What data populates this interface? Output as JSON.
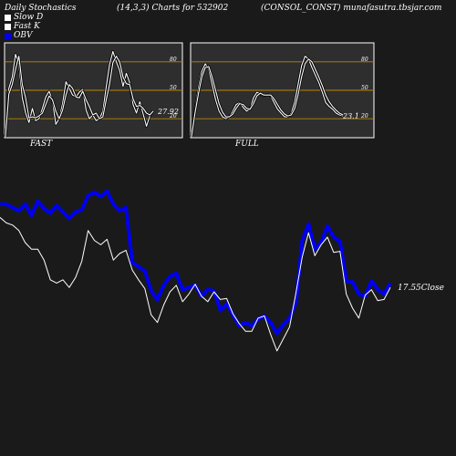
{
  "header": {
    "title": "Daily Stochastics",
    "params": "(14,3,3) Charts for 532902",
    "company": "(CONSOL_CONST) munafasutra.tbsjar.com"
  },
  "legend": [
    {
      "label": "Slow  D",
      "color": "#ffffff"
    },
    {
      "label": "Fast K",
      "color": "#ffffff"
    },
    {
      "label": "OBV",
      "color": "#0000ee"
    }
  ],
  "colors": {
    "background": "#1a1a1a",
    "panel": "#2e2e2e",
    "level_line": "#b8860b",
    "obv": "#0000ee",
    "price": "#ffffff"
  },
  "chart_data": [
    {
      "type": "line",
      "name": "stoch-fast-panel",
      "label": "FAST",
      "ylim": [
        0,
        100
      ],
      "levels": [
        20,
        50,
        80
      ],
      "level_labels": [
        "20",
        "50",
        "80"
      ],
      "last_value_label": "27.92",
      "series": [
        {
          "name": "Fast K",
          "values": [
            1,
            52,
            64,
            88,
            78,
            42,
            26,
            16,
            31,
            18,
            20,
            31,
            43,
            49,
            39,
            14,
            20,
            36,
            59,
            52,
            45,
            43,
            48,
            51,
            29,
            20,
            24,
            18,
            20,
            28,
            54,
            77,
            91,
            80,
            71,
            54,
            68,
            58,
            35,
            26,
            38,
            25,
            12,
            23,
            28
          ]
        },
        {
          "name": "Slow D",
          "values": [
            1,
            46,
            56,
            72,
            86,
            56,
            42,
            21,
            22,
            21,
            23,
            26,
            35,
            44,
            40,
            28,
            20,
            29,
            45,
            56,
            52,
            43,
            42,
            49,
            40,
            33,
            24,
            26,
            20,
            22,
            40,
            56,
            79,
            86,
            80,
            64,
            57,
            56,
            41,
            33,
            34,
            31,
            26,
            24,
            28
          ]
        }
      ]
    },
    {
      "type": "line",
      "name": "stoch-full-panel",
      "label": "FULL",
      "ylim": [
        0,
        100
      ],
      "levels": [
        20,
        50,
        80
      ],
      "level_labels": [
        "20",
        "50",
        "80"
      ],
      "last_value_label": "23.1",
      "series": [
        {
          "name": "K",
          "values": [
            1,
            30,
            52,
            70,
            78,
            72,
            56,
            40,
            28,
            22,
            20,
            22,
            28,
            35,
            37,
            32,
            28,
            30,
            42,
            48,
            46,
            44,
            46,
            44,
            37,
            30,
            26,
            22,
            22,
            26,
            38,
            57,
            76,
            86,
            83,
            74,
            66,
            58,
            48,
            37,
            33,
            30,
            26,
            24,
            23
          ]
        },
        {
          "name": "D",
          "values": [
            1,
            26,
            46,
            64,
            74,
            75,
            64,
            50,
            36,
            27,
            22,
            22,
            25,
            31,
            36,
            35,
            31,
            30,
            36,
            44,
            47,
            45,
            45,
            45,
            41,
            35,
            29,
            25,
            23,
            24,
            31,
            46,
            64,
            78,
            83,
            80,
            72,
            64,
            55,
            45,
            38,
            33,
            29,
            26,
            24
          ]
        }
      ]
    },
    {
      "type": "line",
      "name": "obv-price-panel",
      "close_label": "17.55Close",
      "series": [
        {
          "name": "OBV",
          "values": [
            80,
            80,
            77,
            74,
            80,
            70,
            83,
            76,
            72,
            79,
            73,
            67,
            73,
            75,
            88,
            91,
            87,
            92,
            80,
            74,
            77,
            27,
            23,
            19,
            1,
            -7,
            6,
            14,
            17,
            2,
            4,
            6,
            -4,
            2,
            1,
            -17,
            -11,
            -21,
            -31,
            -28,
            -31,
            -25,
            -22,
            -28,
            -38,
            -30,
            -24,
            -10,
            47,
            62,
            39,
            45,
            60,
            50,
            46,
            10,
            9,
            -2,
            -4,
            10,
            2,
            -2,
            8
          ]
        },
        {
          "name": "Price",
          "values": [
            68,
            63,
            61,
            56,
            45,
            39,
            39,
            29,
            11,
            8,
            11,
            4,
            13,
            28,
            56,
            47,
            43,
            48,
            29,
            35,
            38,
            20,
            11,
            3,
            -21,
            -28,
            -12,
            0,
            6,
            -9,
            -2,
            7,
            -4,
            -9,
            0,
            -7,
            -6,
            -20,
            -29,
            -36,
            -36,
            -24,
            -22,
            -39,
            -54,
            -43,
            -32,
            -1,
            32,
            54,
            33,
            43,
            50,
            36,
            37,
            -2,
            -15,
            -24,
            -3,
            2,
            -8,
            -7,
            4
          ]
        }
      ]
    }
  ]
}
